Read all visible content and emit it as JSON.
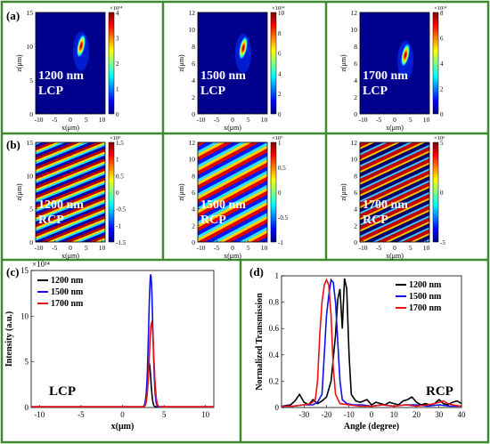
{
  "figure": {
    "frame_color": "#3f8a2e",
    "panel_a": {
      "label": "(a)",
      "subplots": [
        {
          "wavelength": "1200 nm",
          "polarization": "LCP",
          "exponent": "×10¹⁴",
          "cbar_ticks": [
            "4",
            "3",
            "2",
            "1",
            "0"
          ],
          "zmax": 15,
          "zticks": [
            "15",
            "10",
            "5",
            "0"
          ],
          "xticks": [
            "-10",
            "-5",
            "0",
            "5",
            "10"
          ]
        },
        {
          "wavelength": "1500 nm",
          "polarization": "LCP",
          "exponent": "×10¹⁴",
          "cbar_ticks": [
            "10",
            "8",
            "6",
            "4",
            "2",
            "0"
          ],
          "zmax": 12,
          "zticks": [
            "12",
            "10",
            "8",
            "6",
            "4",
            "2",
            "0"
          ],
          "xticks": [
            "-10",
            "-5",
            "0",
            "5",
            "10"
          ]
        },
        {
          "wavelength": "1700 nm",
          "polarization": "LCP",
          "exponent": "×10¹⁴",
          "cbar_ticks": [
            "8",
            "6",
            "4",
            "2",
            "0"
          ],
          "zmax": 12,
          "zticks": [
            "12",
            "10",
            "8",
            "6",
            "4",
            "2",
            "0"
          ],
          "xticks": [
            "-10",
            "-5",
            "0",
            "5",
            "10"
          ]
        }
      ],
      "xlabel": "x(μm)",
      "ylabel": "z(μm)"
    },
    "panel_b": {
      "label": "(b)",
      "subplots": [
        {
          "wavelength": "1200 nm",
          "polarization": "RCP",
          "exponent": "×10⁹",
          "cbar_ticks": [
            "1.5",
            "1",
            "0.5",
            "0",
            "-0.5",
            "-1",
            "-1.5"
          ],
          "zmax": 15,
          "zticks": [
            "15",
            "10",
            "5",
            "0"
          ],
          "xticks": [
            "-10",
            "-5",
            "0",
            "5",
            "10"
          ]
        },
        {
          "wavelength": "1500 nm",
          "polarization": "RCP",
          "exponent": "×10⁷",
          "cbar_ticks": [
            "1",
            "0.5",
            "0",
            "-0.5",
            "-1"
          ],
          "zmax": 12,
          "zticks": [
            "12",
            "10",
            "8",
            "6",
            "4",
            "2",
            "0"
          ],
          "xticks": [
            "-10",
            "-5",
            "0",
            "5",
            "10"
          ]
        },
        {
          "wavelength": "1700 nm",
          "polarization": "RCP",
          "exponent": "×10⁶",
          "cbar_ticks": [
            "5",
            "0",
            "-5"
          ],
          "zmax": 12,
          "zticks": [
            "12",
            "10",
            "8",
            "6",
            "4",
            "2",
            "0"
          ],
          "xticks": [
            "-10",
            "-5",
            "0",
            "5",
            "10"
          ]
        }
      ],
      "xlabel": "x(μm)",
      "ylabel": "z(μm)"
    },
    "panel_c": {
      "label": "(c)",
      "annotation": "LCP",
      "exponent": "×10¹⁴"
    },
    "panel_d": {
      "label": "(d)",
      "annotation": "RCP"
    }
  },
  "chart_data": [
    {
      "type": "line",
      "panel": "(c)",
      "xlabel": "x(μm)",
      "ylabel": "Intensity (a.u.)",
      "xlim": [
        -11,
        11
      ],
      "ylim": [
        0,
        15
      ],
      "xticks": [
        "-10",
        "-5",
        "0",
        "5",
        "10"
      ],
      "yticks": [
        "0",
        "5",
        "10",
        "15"
      ],
      "series": [
        {
          "name": "1200 nm",
          "color": "#000000",
          "peak_x": 3.2,
          "peak_y": 4.8,
          "width": 0.22
        },
        {
          "name": "1500 nm",
          "color": "#1010ee",
          "peak_x": 3.4,
          "peak_y": 14.5,
          "width": 0.25
        },
        {
          "name": "1700 nm",
          "color": "#ee1010",
          "peak_x": 3.5,
          "peak_y": 9.2,
          "width": 0.27
        }
      ]
    },
    {
      "type": "line",
      "panel": "(d)",
      "xlabel": "Angle (degree)",
      "ylabel": "Normalized Transmission",
      "xlim": [
        -40,
        40
      ],
      "ylim": [
        0,
        1
      ],
      "xticks": [
        "-30",
        "-20",
        "-10",
        "0",
        "10",
        "20",
        "30",
        "40"
      ],
      "yticks": [
        "0",
        "0.2",
        "0.4",
        "0.6",
        "0.8",
        "1"
      ],
      "series": [
        {
          "name": "1200 nm",
          "color": "#000000",
          "points": [
            [
              -40,
              0.01
            ],
            [
              -36,
              0.02
            ],
            [
              -34,
              0.05
            ],
            [
              -32,
              0.1
            ],
            [
              -30,
              0.04
            ],
            [
              -28,
              0.02
            ],
            [
              -26,
              0.06
            ],
            [
              -24,
              0.03
            ],
            [
              -22,
              0.05
            ],
            [
              -20,
              0.08
            ],
            [
              -18,
              0.2
            ],
            [
              -16,
              0.55
            ],
            [
              -15,
              0.82
            ],
            [
              -14,
              0.9
            ],
            [
              -13,
              0.6
            ],
            [
              -12,
              0.98
            ],
            [
              -11,
              0.9
            ],
            [
              -10,
              0.4
            ],
            [
              -9,
              0.1
            ],
            [
              -7,
              0.05
            ],
            [
              -5,
              0.04
            ],
            [
              -2,
              0.06
            ],
            [
              0,
              0.02
            ],
            [
              2,
              0.04
            ],
            [
              4,
              0.03
            ],
            [
              6,
              0.02
            ],
            [
              8,
              0.04
            ],
            [
              10,
              0.03
            ],
            [
              12,
              0.02
            ],
            [
              14,
              0.05
            ],
            [
              16,
              0.06
            ],
            [
              18,
              0.08
            ],
            [
              20,
              0.04
            ],
            [
              22,
              0.02
            ],
            [
              24,
              0.03
            ],
            [
              26,
              0.02
            ],
            [
              28,
              0.03
            ],
            [
              30,
              0.06
            ],
            [
              32,
              0.03
            ],
            [
              34,
              0.02
            ],
            [
              36,
              0.04
            ],
            [
              38,
              0.05
            ],
            [
              40,
              0.03
            ]
          ]
        },
        {
          "name": "1500 nm",
          "color": "#1010ee",
          "points": [
            [
              -40,
              0.01
            ],
            [
              -35,
              0.01
            ],
            [
              -30,
              0.02
            ],
            [
              -26,
              0.02
            ],
            [
              -24,
              0.04
            ],
            [
              -22,
              0.1
            ],
            [
              -21,
              0.4
            ],
            [
              -20,
              0.7
            ],
            [
              -19,
              0.85
            ],
            [
              -18,
              0.97
            ],
            [
              -17,
              0.95
            ],
            [
              -16,
              0.8
            ],
            [
              -15,
              0.5
            ],
            [
              -14,
              0.2
            ],
            [
              -13,
              0.06
            ],
            [
              -11,
              0.03
            ],
            [
              -8,
              0.02
            ],
            [
              -4,
              0.02
            ],
            [
              0,
              0.01
            ],
            [
              5,
              0.02
            ],
            [
              10,
              0.01
            ],
            [
              15,
              0.02
            ],
            [
              20,
              0.02
            ],
            [
              25,
              0.01
            ],
            [
              30,
              0.02
            ],
            [
              35,
              0.01
            ],
            [
              40,
              0.01
            ]
          ]
        },
        {
          "name": "1700 nm",
          "color": "#ee1010",
          "points": [
            [
              -40,
              0.01
            ],
            [
              -35,
              0.01
            ],
            [
              -30,
              0.02
            ],
            [
              -27,
              0.03
            ],
            [
              -25,
              0.06
            ],
            [
              -24,
              0.2
            ],
            [
              -23,
              0.55
            ],
            [
              -22,
              0.8
            ],
            [
              -21,
              0.93
            ],
            [
              -20,
              0.97
            ],
            [
              -19,
              0.93
            ],
            [
              -18,
              0.7
            ],
            [
              -17,
              0.3
            ],
            [
              -16,
              0.1
            ],
            [
              -14,
              0.03
            ],
            [
              -10,
              0.02
            ],
            [
              -5,
              0.01
            ],
            [
              0,
              0.01
            ],
            [
              5,
              0.02
            ],
            [
              10,
              0.01
            ],
            [
              15,
              0.02
            ],
            [
              20,
              0.01
            ],
            [
              25,
              0.02
            ],
            [
              28,
              0.03
            ],
            [
              30,
              0.04
            ],
            [
              32,
              0.05
            ],
            [
              34,
              0.03
            ],
            [
              36,
              0.02
            ],
            [
              40,
              0.01
            ]
          ]
        }
      ]
    }
  ]
}
